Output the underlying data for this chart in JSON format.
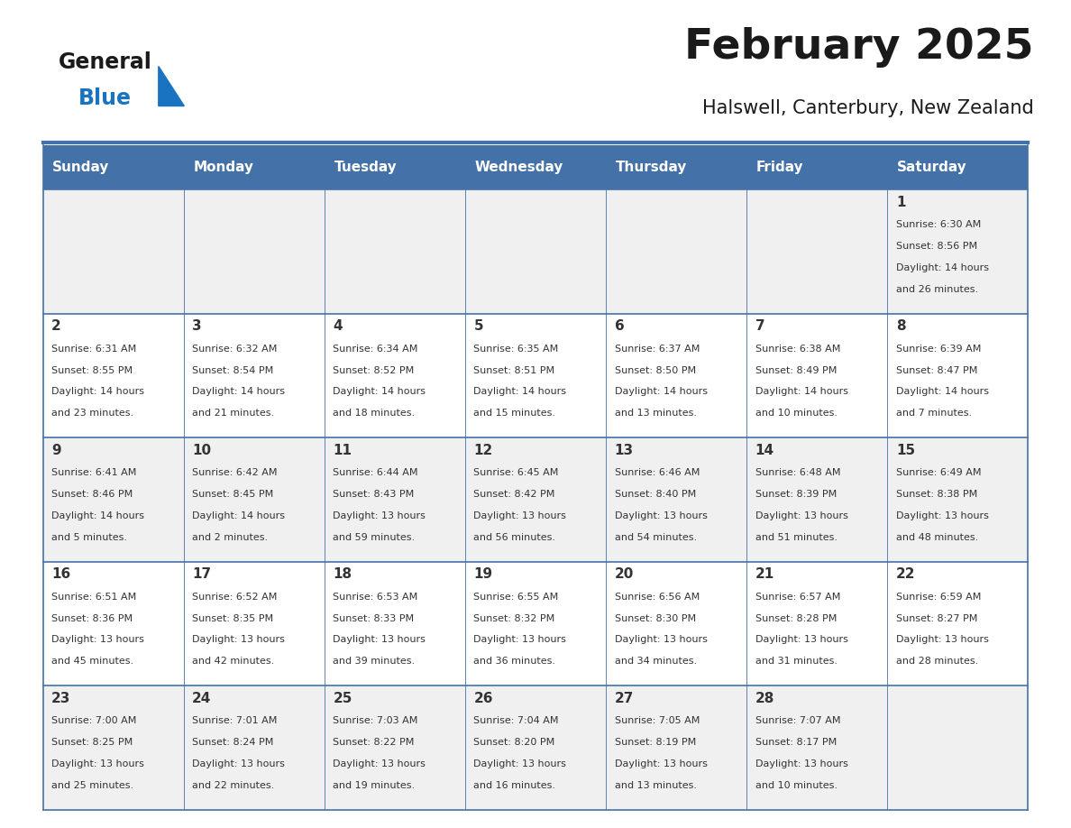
{
  "title": "February 2025",
  "subtitle": "Halswell, Canterbury, New Zealand",
  "header_bg": "#4472a8",
  "header_text": "#ffffff",
  "day_names": [
    "Sunday",
    "Monday",
    "Tuesday",
    "Wednesday",
    "Thursday",
    "Friday",
    "Saturday"
  ],
  "cell_bg_even": "#f0f0f0",
  "cell_bg_odd": "#ffffff",
  "line_color": "#4472a8",
  "day_number_color": "#333333",
  "info_color": "#333333",
  "title_color": "#1a1a1a",
  "subtitle_color": "#1a1a1a",
  "logo_general_color": "#1a1a1a",
  "logo_blue_color": "#1a73c0",
  "calendar": [
    [
      {
        "day": null,
        "info": ""
      },
      {
        "day": null,
        "info": ""
      },
      {
        "day": null,
        "info": ""
      },
      {
        "day": null,
        "info": ""
      },
      {
        "day": null,
        "info": ""
      },
      {
        "day": null,
        "info": ""
      },
      {
        "day": 1,
        "info": "Sunrise: 6:30 AM\nSunset: 8:56 PM\nDaylight: 14 hours\nand 26 minutes."
      }
    ],
    [
      {
        "day": 2,
        "info": "Sunrise: 6:31 AM\nSunset: 8:55 PM\nDaylight: 14 hours\nand 23 minutes."
      },
      {
        "day": 3,
        "info": "Sunrise: 6:32 AM\nSunset: 8:54 PM\nDaylight: 14 hours\nand 21 minutes."
      },
      {
        "day": 4,
        "info": "Sunrise: 6:34 AM\nSunset: 8:52 PM\nDaylight: 14 hours\nand 18 minutes."
      },
      {
        "day": 5,
        "info": "Sunrise: 6:35 AM\nSunset: 8:51 PM\nDaylight: 14 hours\nand 15 minutes."
      },
      {
        "day": 6,
        "info": "Sunrise: 6:37 AM\nSunset: 8:50 PM\nDaylight: 14 hours\nand 13 minutes."
      },
      {
        "day": 7,
        "info": "Sunrise: 6:38 AM\nSunset: 8:49 PM\nDaylight: 14 hours\nand 10 minutes."
      },
      {
        "day": 8,
        "info": "Sunrise: 6:39 AM\nSunset: 8:47 PM\nDaylight: 14 hours\nand 7 minutes."
      }
    ],
    [
      {
        "day": 9,
        "info": "Sunrise: 6:41 AM\nSunset: 8:46 PM\nDaylight: 14 hours\nand 5 minutes."
      },
      {
        "day": 10,
        "info": "Sunrise: 6:42 AM\nSunset: 8:45 PM\nDaylight: 14 hours\nand 2 minutes."
      },
      {
        "day": 11,
        "info": "Sunrise: 6:44 AM\nSunset: 8:43 PM\nDaylight: 13 hours\nand 59 minutes."
      },
      {
        "day": 12,
        "info": "Sunrise: 6:45 AM\nSunset: 8:42 PM\nDaylight: 13 hours\nand 56 minutes."
      },
      {
        "day": 13,
        "info": "Sunrise: 6:46 AM\nSunset: 8:40 PM\nDaylight: 13 hours\nand 54 minutes."
      },
      {
        "day": 14,
        "info": "Sunrise: 6:48 AM\nSunset: 8:39 PM\nDaylight: 13 hours\nand 51 minutes."
      },
      {
        "day": 15,
        "info": "Sunrise: 6:49 AM\nSunset: 8:38 PM\nDaylight: 13 hours\nand 48 minutes."
      }
    ],
    [
      {
        "day": 16,
        "info": "Sunrise: 6:51 AM\nSunset: 8:36 PM\nDaylight: 13 hours\nand 45 minutes."
      },
      {
        "day": 17,
        "info": "Sunrise: 6:52 AM\nSunset: 8:35 PM\nDaylight: 13 hours\nand 42 minutes."
      },
      {
        "day": 18,
        "info": "Sunrise: 6:53 AM\nSunset: 8:33 PM\nDaylight: 13 hours\nand 39 minutes."
      },
      {
        "day": 19,
        "info": "Sunrise: 6:55 AM\nSunset: 8:32 PM\nDaylight: 13 hours\nand 36 minutes."
      },
      {
        "day": 20,
        "info": "Sunrise: 6:56 AM\nSunset: 8:30 PM\nDaylight: 13 hours\nand 34 minutes."
      },
      {
        "day": 21,
        "info": "Sunrise: 6:57 AM\nSunset: 8:28 PM\nDaylight: 13 hours\nand 31 minutes."
      },
      {
        "day": 22,
        "info": "Sunrise: 6:59 AM\nSunset: 8:27 PM\nDaylight: 13 hours\nand 28 minutes."
      }
    ],
    [
      {
        "day": 23,
        "info": "Sunrise: 7:00 AM\nSunset: 8:25 PM\nDaylight: 13 hours\nand 25 minutes."
      },
      {
        "day": 24,
        "info": "Sunrise: 7:01 AM\nSunset: 8:24 PM\nDaylight: 13 hours\nand 22 minutes."
      },
      {
        "day": 25,
        "info": "Sunrise: 7:03 AM\nSunset: 8:22 PM\nDaylight: 13 hours\nand 19 minutes."
      },
      {
        "day": 26,
        "info": "Sunrise: 7:04 AM\nSunset: 8:20 PM\nDaylight: 13 hours\nand 16 minutes."
      },
      {
        "day": 27,
        "info": "Sunrise: 7:05 AM\nSunset: 8:19 PM\nDaylight: 13 hours\nand 13 minutes."
      },
      {
        "day": 28,
        "info": "Sunrise: 7:07 AM\nSunset: 8:17 PM\nDaylight: 13 hours\nand 10 minutes."
      },
      {
        "day": null,
        "info": ""
      }
    ]
  ]
}
